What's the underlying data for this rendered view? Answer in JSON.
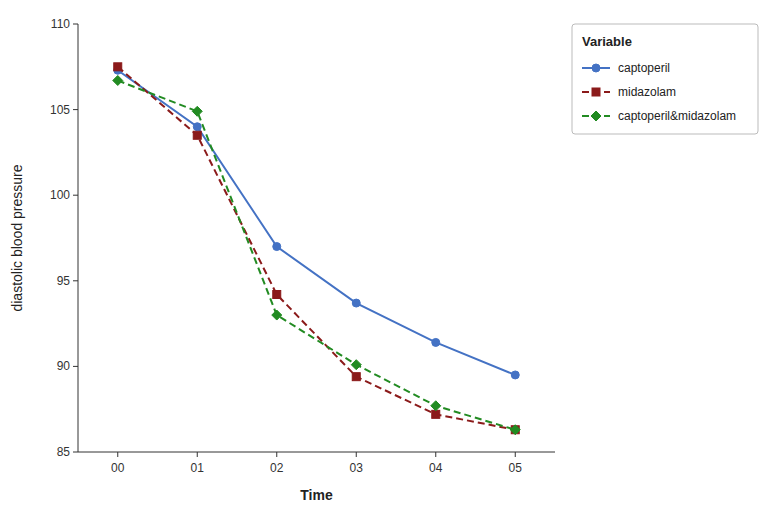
{
  "chart_data": {
    "type": "line",
    "categories": [
      "00",
      "01",
      "02",
      "03",
      "04",
      "05"
    ],
    "series": [
      {
        "name": "captoperil",
        "color": "#4472c4",
        "marker": "circle",
        "line_style": "solid",
        "values": [
          107.3,
          104.0,
          97.0,
          93.7,
          91.4,
          89.5
        ]
      },
      {
        "name": "midazolam",
        "color": "#8b1a1a",
        "marker": "square",
        "line_style": "dashed",
        "values": [
          107.5,
          103.5,
          94.2,
          89.4,
          87.2,
          86.3
        ]
      },
      {
        "name": "captoperil&midazolam",
        "color": "#228B22",
        "marker": "diamond",
        "line_style": "dashed",
        "values": [
          106.7,
          104.9,
          93.0,
          90.1,
          87.7,
          86.3
        ]
      }
    ],
    "x_label": "Time",
    "y_label": "diastolic blood pressure",
    "ylim": [
      85,
      110
    ],
    "yticks": [
      85,
      90,
      95,
      100,
      105,
      110
    ],
    "legend_title": "Variable",
    "legend": "right",
    "grid": false
  }
}
